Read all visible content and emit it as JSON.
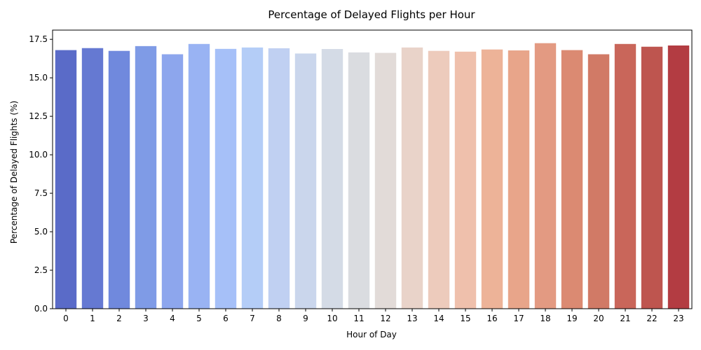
{
  "chart_data": {
    "type": "bar",
    "title": "Percentage of Delayed Flights per Hour",
    "xlabel": "Hour of Day",
    "ylabel": "Percentage of Delayed Flights (%)",
    "categories": [
      "0",
      "1",
      "2",
      "3",
      "4",
      "5",
      "6",
      "7",
      "8",
      "9",
      "10",
      "11",
      "12",
      "13",
      "14",
      "15",
      "16",
      "17",
      "18",
      "19",
      "20",
      "21",
      "22",
      "23"
    ],
    "values": [
      16.8,
      16.93,
      16.75,
      17.06,
      16.53,
      17.2,
      16.88,
      16.97,
      16.92,
      16.58,
      16.87,
      16.65,
      16.62,
      16.97,
      16.75,
      16.7,
      16.84,
      16.78,
      17.25,
      16.8,
      16.53,
      17.2,
      17.02,
      17.1
    ],
    "yticks": [
      "0.0",
      "2.5",
      "5.0",
      "7.5",
      "10.0",
      "12.5",
      "15.0",
      "17.5"
    ],
    "ylim": [
      0,
      18.1
    ],
    "grid": false,
    "colormap": "coolwarm",
    "colors": [
      "#5a6bc8",
      "#6579d2",
      "#7089dd",
      "#7f9be6",
      "#8da6ed",
      "#99b3f3",
      "#a6c0f8",
      "#b4cdf7",
      "#c0d0f2",
      "#cad6ec",
      "#d4dbe6",
      "#dadce0",
      "#e2dbd8",
      "#e9d3c9",
      "#edcbbc",
      "#efc0ac",
      "#edb398",
      "#e8a58a",
      "#e39a82",
      "#db8a72",
      "#d17a66",
      "#c9665a",
      "#be554f",
      "#b33c42"
    ]
  }
}
